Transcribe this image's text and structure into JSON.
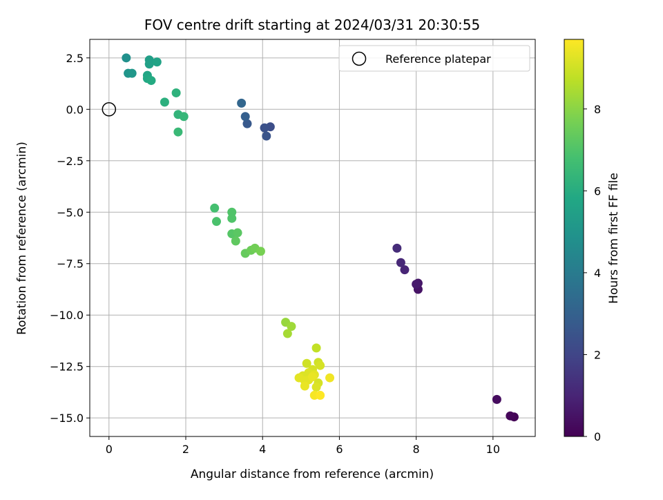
{
  "chart_data": {
    "type": "scatter",
    "title": "FOV centre drift starting at 2024/03/31 20:30:55",
    "xlabel": "Angular distance from reference (arcmin)",
    "ylabel": "Rotation from reference (arcmin)",
    "xlim": [
      -0.5,
      11.1
    ],
    "ylim": [
      -15.9,
      3.4
    ],
    "x_ticks": [
      0,
      2,
      4,
      6,
      8,
      10
    ],
    "x_tick_labels": [
      "0",
      "2",
      "4",
      "6",
      "8",
      "10"
    ],
    "y_ticks": [
      2.5,
      0,
      -2.5,
      -5,
      -7.5,
      -10,
      -12.5,
      -15
    ],
    "y_tick_labels": [
      "2.5",
      "0.0",
      "−2.5",
      "−5.0",
      "−7.5",
      "−10.0",
      "−12.5",
      "−15.0"
    ],
    "grid": true,
    "legend": {
      "placement": "top-right",
      "entries": [
        "Reference platepar"
      ]
    },
    "reference_point": {
      "name": "Reference platepar",
      "x": 0,
      "y": 0
    },
    "colorbar": {
      "label": "Hours from first FF file",
      "colormap": "viridis",
      "range": [
        0,
        9.7
      ],
      "ticks": [
        0,
        2,
        4,
        6,
        8
      ],
      "tick_labels": [
        "0",
        "2",
        "4",
        "6",
        "8"
      ]
    },
    "points": [
      {
        "x": 10.55,
        "y": -14.95,
        "c": 0.05
      },
      {
        "x": 10.45,
        "y": -14.9,
        "c": 0.15
      },
      {
        "x": 10.1,
        "y": -14.1,
        "c": 0.3
      },
      {
        "x": 8.05,
        "y": -8.75,
        "c": 0.5
      },
      {
        "x": 8.05,
        "y": -8.45,
        "c": 0.6
      },
      {
        "x": 8.0,
        "y": -8.5,
        "c": 0.7
      },
      {
        "x": 7.7,
        "y": -7.8,
        "c": 1.0
      },
      {
        "x": 7.6,
        "y": -7.45,
        "c": 1.1
      },
      {
        "x": 7.5,
        "y": -6.75,
        "c": 1.2
      },
      {
        "x": 4.2,
        "y": -0.85,
        "c": 2.3
      },
      {
        "x": 4.05,
        "y": -0.9,
        "c": 2.4
      },
      {
        "x": 4.1,
        "y": -1.3,
        "c": 2.5
      },
      {
        "x": 3.6,
        "y": -0.7,
        "c": 2.7
      },
      {
        "x": 3.55,
        "y": -0.35,
        "c": 2.9
      },
      {
        "x": 3.45,
        "y": 0.3,
        "c": 3.2
      },
      {
        "x": 0.45,
        "y": 2.5,
        "c": 4.8
      },
      {
        "x": 0.5,
        "y": 1.75,
        "c": 5.0
      },
      {
        "x": 0.6,
        "y": 1.75,
        "c": 5.1
      },
      {
        "x": 1.05,
        "y": 2.4,
        "c": 5.4
      },
      {
        "x": 1.05,
        "y": 2.2,
        "c": 5.5
      },
      {
        "x": 1.25,
        "y": 2.3,
        "c": 5.6
      },
      {
        "x": 1.0,
        "y": 1.65,
        "c": 5.7
      },
      {
        "x": 1.0,
        "y": 1.5,
        "c": 5.8
      },
      {
        "x": 1.1,
        "y": 1.4,
        "c": 5.9
      },
      {
        "x": 1.45,
        "y": 0.35,
        "c": 6.1
      },
      {
        "x": 1.75,
        "y": 0.8,
        "c": 6.2
      },
      {
        "x": 1.8,
        "y": -0.25,
        "c": 6.3
      },
      {
        "x": 1.95,
        "y": -0.35,
        "c": 6.4
      },
      {
        "x": 1.8,
        "y": -1.1,
        "c": 6.5
      },
      {
        "x": 2.75,
        "y": -4.8,
        "c": 6.8
      },
      {
        "x": 2.8,
        "y": -5.45,
        "c": 6.9
      },
      {
        "x": 3.2,
        "y": -5.0,
        "c": 7.0
      },
      {
        "x": 3.2,
        "y": -5.3,
        "c": 7.0
      },
      {
        "x": 3.2,
        "y": -6.05,
        "c": 7.1
      },
      {
        "x": 3.35,
        "y": -6.0,
        "c": 7.2
      },
      {
        "x": 3.3,
        "y": -6.4,
        "c": 7.3
      },
      {
        "x": 3.55,
        "y": -7.0,
        "c": 7.4
      },
      {
        "x": 3.7,
        "y": -6.85,
        "c": 7.5
      },
      {
        "x": 3.8,
        "y": -6.75,
        "c": 7.6
      },
      {
        "x": 3.95,
        "y": -6.9,
        "c": 7.7
      },
      {
        "x": 4.6,
        "y": -10.35,
        "c": 8.2
      },
      {
        "x": 4.75,
        "y": -10.55,
        "c": 8.3
      },
      {
        "x": 4.65,
        "y": -10.9,
        "c": 8.4
      },
      {
        "x": 5.4,
        "y": -11.6,
        "c": 8.8
      },
      {
        "x": 5.15,
        "y": -12.35,
        "c": 9.0
      },
      {
        "x": 5.45,
        "y": -12.3,
        "c": 9.0
      },
      {
        "x": 5.5,
        "y": -12.45,
        "c": 9.1
      },
      {
        "x": 5.3,
        "y": -12.65,
        "c": 9.1
      },
      {
        "x": 5.2,
        "y": -12.8,
        "c": 9.2
      },
      {
        "x": 5.05,
        "y": -12.95,
        "c": 9.2
      },
      {
        "x": 4.95,
        "y": -13.05,
        "c": 9.3
      },
      {
        "x": 5.35,
        "y": -12.9,
        "c": 9.3
      },
      {
        "x": 5.1,
        "y": -13.2,
        "c": 9.3
      },
      {
        "x": 5.2,
        "y": -13.15,
        "c": 9.3
      },
      {
        "x": 5.3,
        "y": -13.0,
        "c": 9.4
      },
      {
        "x": 5.45,
        "y": -13.3,
        "c": 9.1
      },
      {
        "x": 5.4,
        "y": -13.5,
        "c": 9.2
      },
      {
        "x": 5.1,
        "y": -13.45,
        "c": 9.4
      },
      {
        "x": 5.75,
        "y": -13.05,
        "c": 9.5
      },
      {
        "x": 5.35,
        "y": -13.9,
        "c": 9.6
      },
      {
        "x": 5.5,
        "y": -13.9,
        "c": 9.7
      }
    ]
  }
}
